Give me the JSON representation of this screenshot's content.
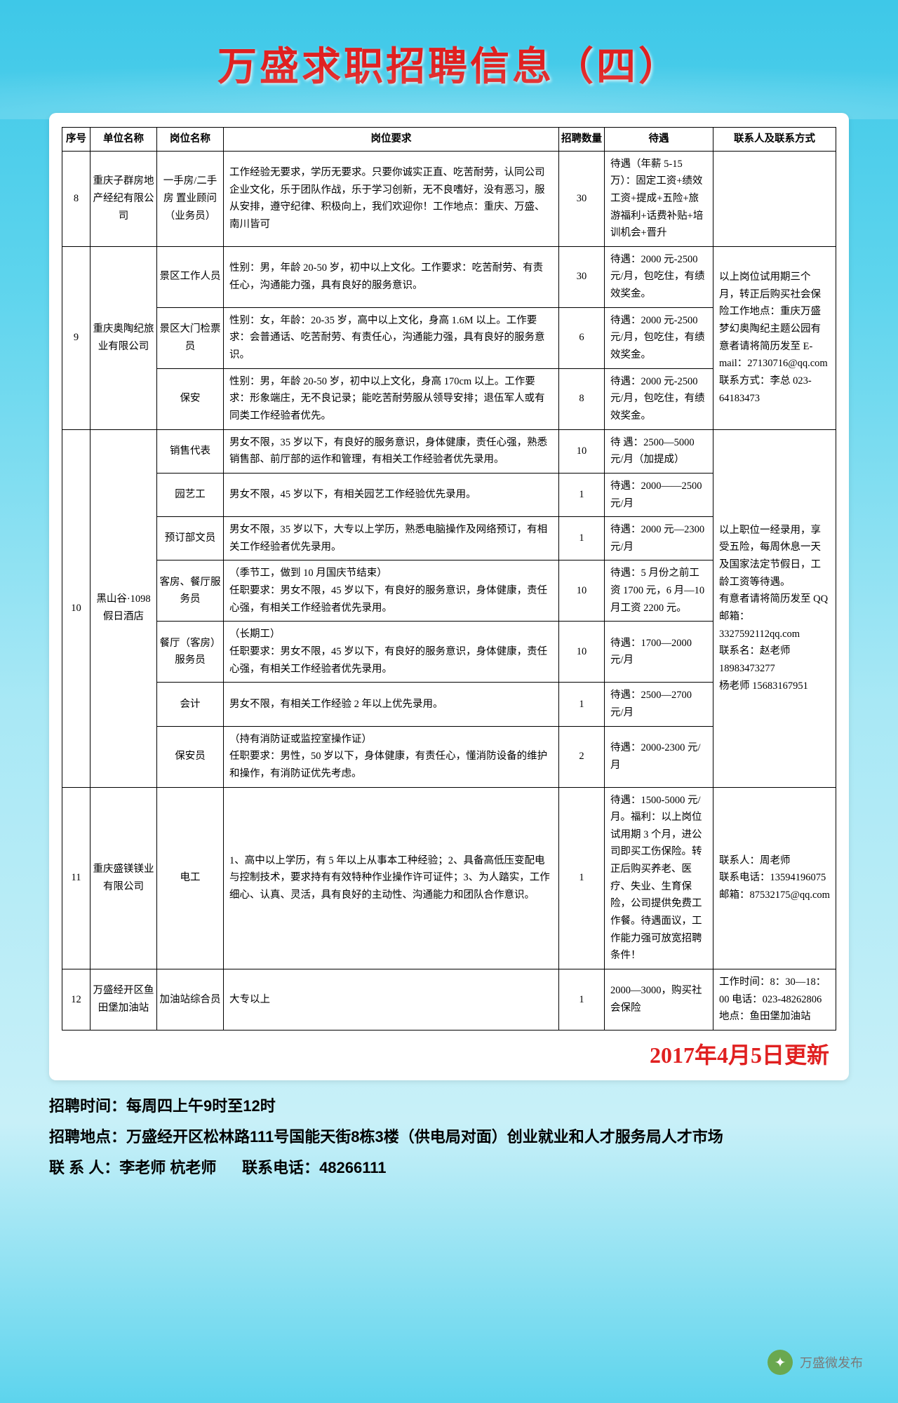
{
  "title": "万盛求职招聘信息（四）",
  "columns": [
    "序号",
    "单位名称",
    "岗位名称",
    "岗位要求",
    "招聘数量",
    "待遇",
    "联系人及联系方式"
  ],
  "rows": [
    {
      "no": "8",
      "company": "重庆子群房地产经纪有限公司",
      "positions": [
        {
          "job": "一手房/二手房 置业顾问（业务员）",
          "requirement": "工作经验无要求，学历无要求。只要你诚实正直、吃苦耐劳，认同公司企业文化，乐于团队作战，乐于学习创新，无不良嗜好，没有恶习，服从安排，遵守纪律、积极向上，我们欢迎你！工作地点：重庆、万盛、南川皆可",
          "count": "30",
          "treatment": "待遇（年薪 5-15 万）：固定工资+绩效工资+提成+五险+旅游福利+话费补贴+培训机会+晋升"
        }
      ],
      "contact": ""
    },
    {
      "no": "9",
      "company": "重庆奥陶纪旅业有限公司",
      "positions": [
        {
          "job": "景区工作人员",
          "requirement": "性别：男，年龄 20-50 岁，初中以上文化。工作要求：吃苦耐劳、有责任心，沟通能力强，具有良好的服务意识。",
          "count": "30",
          "treatment": "待遇：2000 元-2500 元/月，包吃住，有绩效奖金。"
        },
        {
          "job": "景区大门检票员",
          "requirement": "性别：女，年龄：20-35 岁，高中以上文化，身高 1.6M 以上。工作要求：会普通话、吃苦耐劳、有责任心，沟通能力强，具有良好的服务意识。",
          "count": "6",
          "treatment": "待遇：2000 元-2500 元/月，包吃住，有绩效奖金。"
        },
        {
          "job": "保安",
          "requirement": "性别：男，年龄 20-50 岁，初中以上文化，身高 170cm 以上。工作要求：形象端庄，无不良记录；能吃苦耐劳服从领导安排；退伍军人或有同类工作经验者优先。",
          "count": "8",
          "treatment": "待遇：2000 元-2500 元/月，包吃住，有绩效奖金。"
        }
      ],
      "contact": "以上岗位试用期三个月，转正后购买社会保险工作地点：重庆万盛梦幻奥陶纪主题公园有意者请将简历发至 E-mail：27130716@qq.com\n联系方式：李总 023-64183473"
    },
    {
      "no": "10",
      "company": "黑山谷·1098 假日酒店",
      "positions": [
        {
          "job": "销售代表",
          "requirement": "男女不限，35 岁以下，有良好的服务意识，身体健康，责任心强，熟悉销售部、前厅部的运作和管理，有相关工作经验者优先录用。",
          "count": "10",
          "treatment": "待 遇：2500—5000 元/月（加提成）"
        },
        {
          "job": "园艺工",
          "requirement": "男女不限，45 岁以下，有相关园艺工作经验优先录用。",
          "count": "1",
          "treatment": "待遇：2000——2500 元/月"
        },
        {
          "job": "预订部文员",
          "requirement": "男女不限，35 岁以下，大专以上学历，熟悉电脑操作及网络预订，有相关工作经验者优先录用。",
          "count": "1",
          "treatment": "待遇：2000 元—2300 元/月"
        },
        {
          "job": "客房、餐厅服务员",
          "requirement": "（季节工，做到 10 月国庆节结束）\n任职要求：男女不限，45 岁以下，有良好的服务意识，身体健康，责任心强，有相关工作经验者优先录用。",
          "count": "10",
          "treatment": "待遇：5 月份之前工资 1700 元，6 月—10 月工资 2200 元。"
        },
        {
          "job": "餐厅（客房）服务员",
          "requirement": "（长期工）\n任职要求：男女不限，45 岁以下，有良好的服务意识，身体健康，责任心强，有相关工作经验者优先录用。",
          "count": "10",
          "treatment": "待遇：1700—2000 元/月"
        },
        {
          "job": "会计",
          "requirement": "男女不限，有相关工作经验 2 年以上优先录用。",
          "count": "1",
          "treatment": "待遇：2500—2700 元/月"
        },
        {
          "job": "保安员",
          "requirement": "（持有消防证或监控室操作证）\n任职要求：男性，50 岁以下，身体健康，有责任心，懂消防设备的维护和操作，有消防证优先考虑。",
          "count": "2",
          "treatment": "待遇：2000-2300 元/月"
        }
      ],
      "contact": "以上职位一经录用，享受五险，每周休息一天及国家法定节假日，工龄工资等待遇。\n有意者请将简历发至 QQ 邮箱：3327592112qq.com\n联系名：赵老师 18983473277\n杨老师 15683167951"
    },
    {
      "no": "11",
      "company": "重庆盛镁镁业有限公司",
      "positions": [
        {
          "job": "电工",
          "requirement": "1、高中以上学历，有 5 年以上从事本工种经验；2、具备高低压变配电与控制技术，要求持有有效特种作业操作许可证件；3、为人踏实，工作细心、认真、灵活，具有良好的主动性、沟通能力和团队合作意识。",
          "count": "1",
          "treatment": "待遇：1500-5000 元/月。福利：以上岗位试用期 3 个月，进公司即买工伤保险。转正后购买养老、医疗、失业、生育保险，公司提供免费工作餐。待遇面议，工作能力强可放宽招聘条件！"
        }
      ],
      "contact": "联系人：周老师\n联系电话：13594196075\n邮箱：87532175@qq.com"
    },
    {
      "no": "12",
      "company": "万盛经开区鱼田堡加油站",
      "positions": [
        {
          "job": "加油站综合员",
          "requirement": "大专以上",
          "count": "1",
          "treatment": "2000—3000，购买社会保险"
        }
      ],
      "contact": "工作时间：8：30—18：00 电话：023-48262806 地点：鱼田堡加油站"
    }
  ],
  "update_date": "2017年4月5日更新",
  "footer": {
    "time_label": "招聘时间：",
    "time_value": "每周四上午9时至12时",
    "addr_label": "招聘地点：",
    "addr_value": "万盛经开区松林路111号国能天街8栋3楼（供电局对面）创业就业和人才服务局人才市场",
    "contact_label": "联 系 人：",
    "contact_value": "李老师 杭老师",
    "phone_label": "联系电话：",
    "phone_value": "48266111"
  },
  "watermark": "万盛微发布"
}
